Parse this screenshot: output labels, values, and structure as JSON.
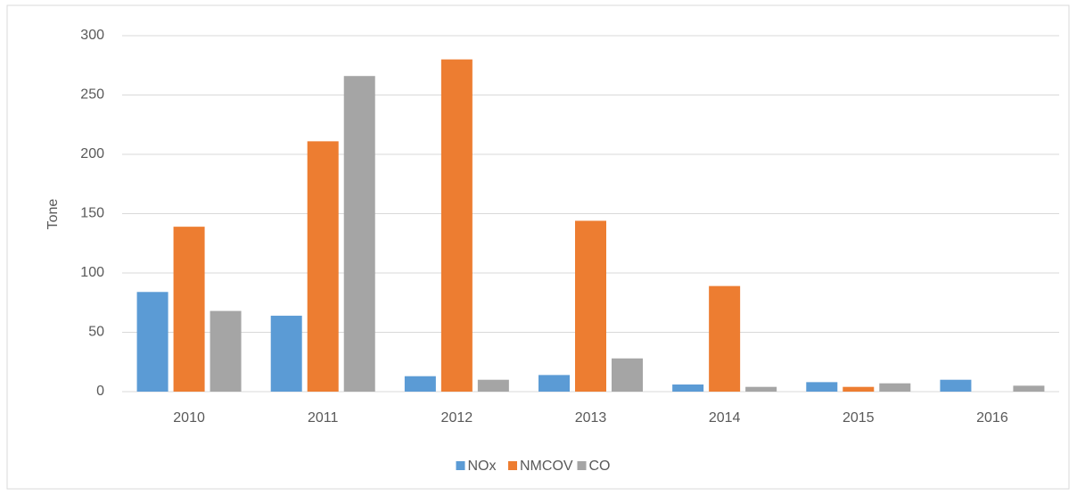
{
  "chart_data": {
    "type": "bar",
    "y_label": "Tone",
    "categories": [
      "2010",
      "2011",
      "2012",
      "2013",
      "2014",
      "2015",
      "2016"
    ],
    "series": [
      {
        "name": "NOx",
        "color": "#5b9bd5",
        "values": [
          84,
          64,
          13,
          14,
          6,
          8,
          10
        ]
      },
      {
        "name": "NMCOV",
        "color": "#ed7d31",
        "values": [
          139,
          211,
          280,
          144,
          89,
          4,
          0
        ]
      },
      {
        "name": "CO",
        "color": "#a5a5a5",
        "values": [
          68,
          266,
          10,
          28,
          4,
          7,
          5
        ]
      }
    ],
    "ylim": [
      0,
      300
    ],
    "yticks": [
      0,
      50,
      100,
      150,
      200,
      250,
      300
    ],
    "grid": true,
    "legend": "bottom"
  }
}
